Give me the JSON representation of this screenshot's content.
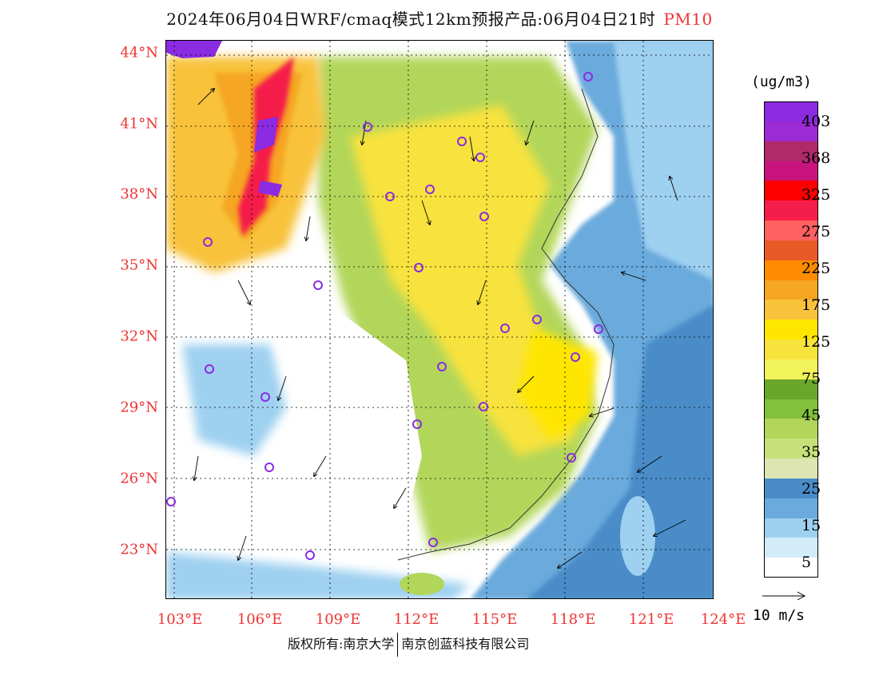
{
  "title": {
    "main": "2024年06月04日WRF/cmaq模式12km预报产品:06月04日21时",
    "pollutant": "PM10"
  },
  "axes": {
    "lat_labels": [
      "44°N",
      "41°N",
      "38°N",
      "35°N",
      "32°N",
      "29°N",
      "26°N",
      "23°N"
    ],
    "lon_labels": [
      "103°E",
      "106°E",
      "109°E",
      "112°E",
      "115°E",
      "118°E",
      "121°E",
      "124°E"
    ]
  },
  "colorbar": {
    "units": "(ug/m3)",
    "colors": [
      "#8b2be2",
      "#9c2bd6",
      "#b02a6a",
      "#c8147c",
      "#ff0000",
      "#f51e4a",
      "#ff6060",
      "#e85a28",
      "#ff8c00",
      "#f5a623",
      "#f8c23a",
      "#ffe600",
      "#f8e23c",
      "#f2f25a",
      "#6aa62a",
      "#82c23a",
      "#b2d65a",
      "#c7e07a",
      "#dde6b2",
      "#4a8cc8",
      "#6aaadc",
      "#9ed0f0",
      "#d2ecfa",
      "#ffffff"
    ],
    "tick_labels": [
      "403",
      "368",
      "325",
      "275",
      "225",
      "175",
      "125",
      "75",
      "45",
      "35",
      "25",
      "15",
      "5"
    ]
  },
  "wind_legend": {
    "label": "10 m/s"
  },
  "credits": {
    "left": "版权所有:南京大学",
    "right": "南京创蓝科技有限公司"
  }
}
